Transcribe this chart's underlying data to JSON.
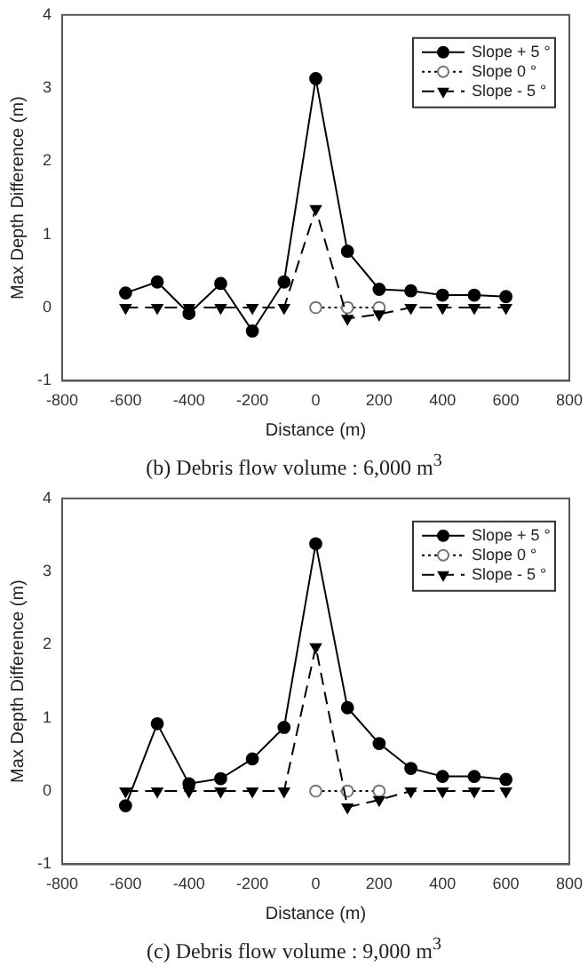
{
  "chart_data": [
    {
      "type": "line",
      "xlabel": "Distance (m)",
      "ylabel": "Max Depth Difference (m)",
      "annotations": [
        "(b) Debris flow volume : 6,000 m$^{3}$"
      ],
      "x": [
        -600,
        -500,
        -400,
        -300,
        -200,
        -100,
        0,
        100,
        200,
        300,
        400,
        500,
        600
      ],
      "series": [
        {
          "name": "Slope + 5 °",
          "color": "#000000",
          "marker": "circle",
          "line_style": "solid",
          "values": [
            0.2,
            0.35,
            -0.08,
            0.33,
            -0.32,
            0.35,
            3.13,
            0.77,
            0.25,
            0.23,
            0.17,
            0.17,
            0.15
          ]
        },
        {
          "name": "Slope 0 °",
          "color": "#000000",
          "marker": "circle",
          "line_style": "dotted",
          "values": [
            null,
            null,
            null,
            null,
            null,
            null,
            0,
            0,
            0,
            null,
            null,
            null,
            null
          ]
        },
        {
          "name": "Slope - 5 °",
          "color": "#000000",
          "marker": "triangle",
          "line_style": "dashed",
          "values": [
            0,
            0,
            0,
            0,
            0,
            0,
            1.35,
            -0.15,
            -0.09,
            0,
            0,
            0,
            0
          ]
        }
      ],
      "xlim": [
        -800,
        800
      ],
      "xticks": [
        -800,
        -600,
        -400,
        -200,
        0,
        200,
        400,
        600,
        800
      ],
      "ylim": [
        -1,
        4
      ],
      "yticks": [
        -1,
        0,
        1,
        2,
        3,
        4
      ],
      "grid": false,
      "legend": "top right"
    },
    {
      "type": "line",
      "xlabel": "Distance (m)",
      "ylabel": "Max Depth Difference (m)",
      "annotations": [
        "(c) Debris flow volume : 9,000 m$^{3}$"
      ],
      "x": [
        -600,
        -500,
        -400,
        -300,
        -200,
        -100,
        0,
        100,
        200,
        300,
        400,
        500,
        600
      ],
      "series": [
        {
          "name": "Slope + 5 °",
          "color": "#000000",
          "marker": "circle",
          "line_style": "solid",
          "values": [
            -0.2,
            0.92,
            0.1,
            0.17,
            0.44,
            0.87,
            3.38,
            1.14,
            0.65,
            0.31,
            0.2,
            0.2,
            0.16
          ]
        },
        {
          "name": "Slope 0 °",
          "color": "#000000",
          "marker": "circle",
          "line_style": "dotted",
          "values": [
            null,
            null,
            null,
            null,
            null,
            null,
            0,
            0,
            0,
            null,
            null,
            null,
            null
          ]
        },
        {
          "name": "Slope - 5 °",
          "color": "#000000",
          "marker": "triangle",
          "line_style": "dashed",
          "values": [
            0,
            0,
            0,
            0,
            0,
            0,
            1.97,
            -0.22,
            -0.12,
            0,
            0,
            0,
            0
          ]
        }
      ],
      "xlim": [
        -800,
        800
      ],
      "xticks": [
        -800,
        -600,
        -400,
        -200,
        0,
        200,
        400,
        600,
        800
      ],
      "ylim": [
        -1,
        4
      ],
      "yticks": [
        -1,
        0,
        1,
        2,
        3,
        4
      ],
      "grid": false,
      "legend": "top right"
    }
  ]
}
